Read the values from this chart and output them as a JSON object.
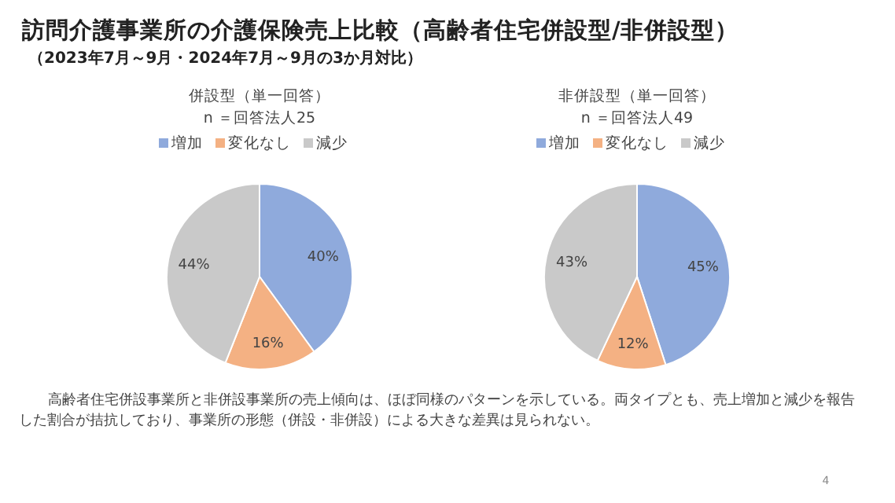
{
  "chart_data": [
    {
      "type": "other",
      "title": "訪問介護事業所の介護保険売上比較（高齢者住宅併設型/非併設型）",
      "subtitle": "（2023年7月～9月・2024年7月～9月の3か月対比）",
      "annotations": [
        "高齢者住宅併設事業所と非併設事業所の売上傾向は、ほぼ同様のパターンを示している。両タイプとも、売上増加と減少を報告した割合が拮抗しており、事業所の形態（併設・非併設）による大きな差異は見られない。",
        "4"
      ]
    },
    {
      "type": "pie",
      "title": "併設型（単一回答）",
      "subtitle": "n ＝回答法人25",
      "categories": [
        "増加",
        "変化なし",
        "減少"
      ],
      "values": [
        40,
        16,
        44
      ],
      "colors": [
        "#8faadc",
        "#f4b183",
        "#c9c9c9"
      ],
      "value_labels": [
        "40%",
        "16%",
        "44%"
      ],
      "legend": "top"
    },
    {
      "type": "pie",
      "title": "非併設型（単一回答）",
      "subtitle": "n ＝回答法人49",
      "categories": [
        "増加",
        "変化なし",
        "減少"
      ],
      "values": [
        45,
        12,
        43
      ],
      "colors": [
        "#8faadc",
        "#f4b183",
        "#c9c9c9"
      ],
      "value_labels": [
        "45%",
        "12%",
        "43%"
      ],
      "legend": "top"
    }
  ]
}
